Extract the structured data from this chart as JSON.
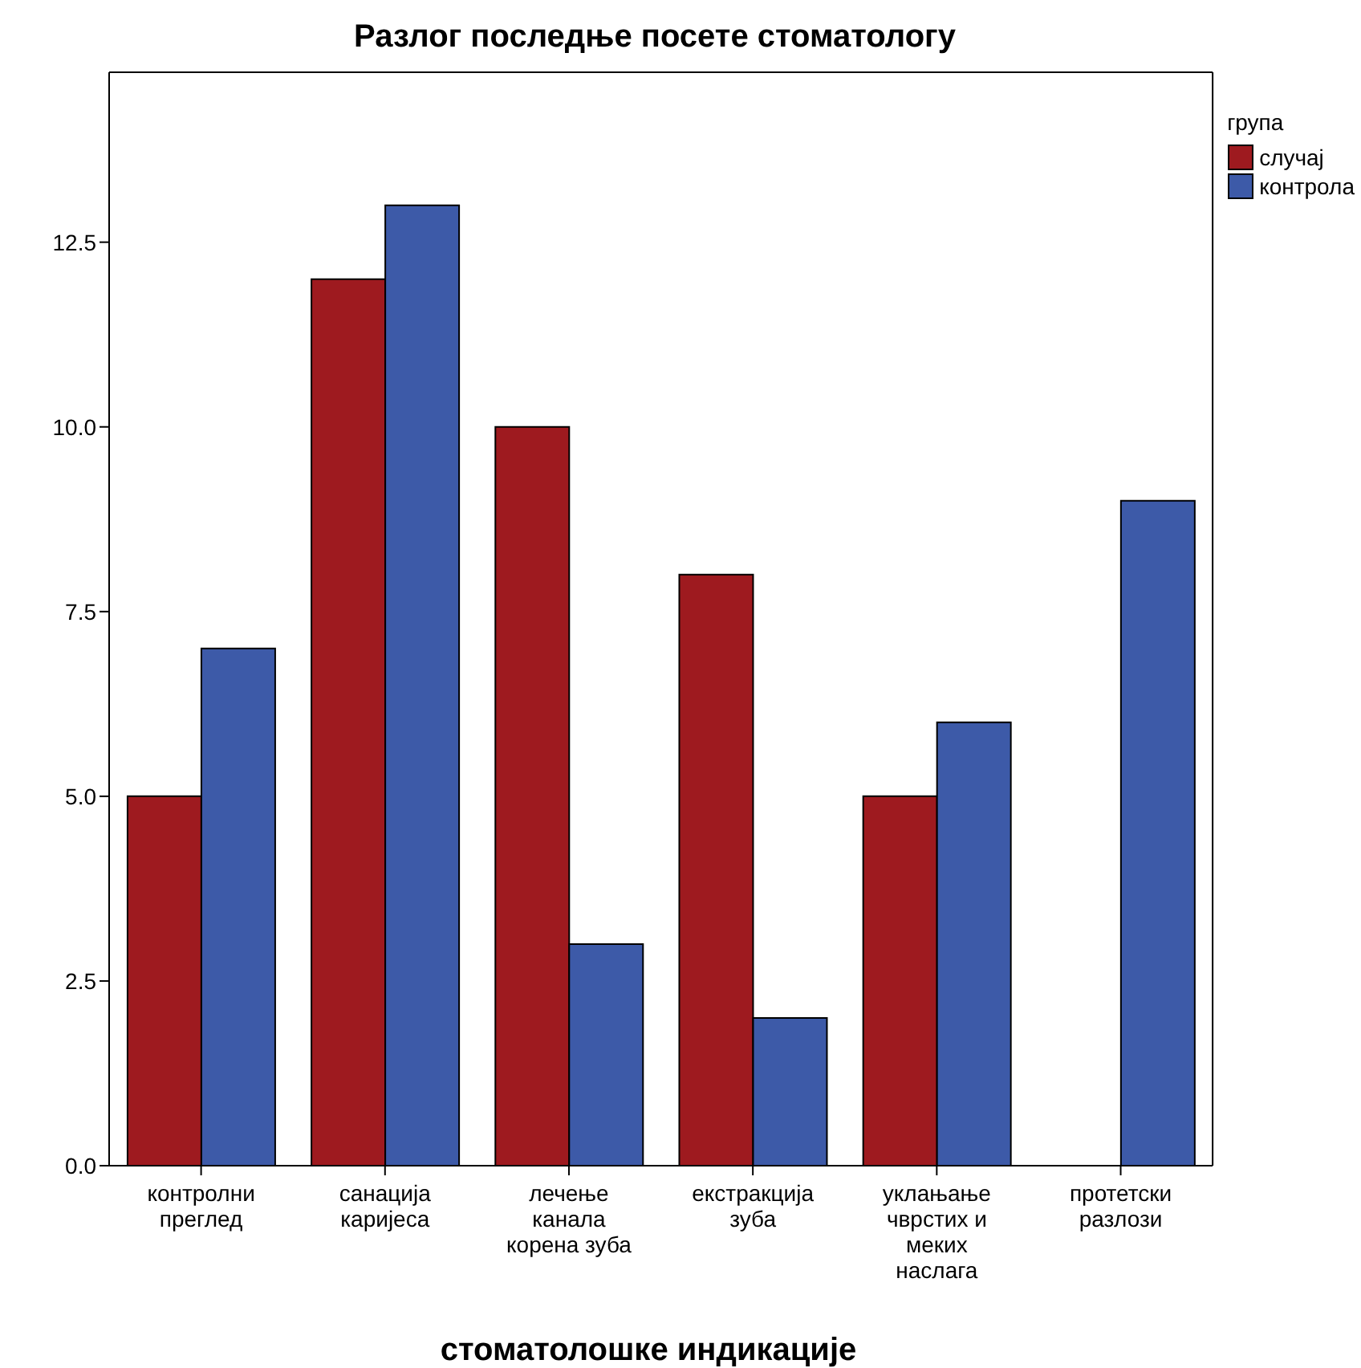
{
  "chart_data": {
    "type": "bar",
    "title": "Разлог последње посете стоматологу",
    "xlabel": "стоматолошке индикације",
    "legend_title": "група",
    "legend": "top right",
    "grid": false,
    "categories": [
      "контролни преглед",
      "санација каријеса",
      "лечење канала корена зуба",
      "екстракција зуба",
      "уклањање чврстих и меких наслага",
      "протетски разлози"
    ],
    "series": [
      {
        "name": "случај",
        "color": "#9e1a1f",
        "values": [
          5,
          12,
          10,
          8,
          5,
          0
        ]
      },
      {
        "name": "контрола",
        "color": "#3d5aa8",
        "values": [
          7,
          13,
          3,
          2,
          6,
          9
        ]
      }
    ],
    "ylim": [
      0,
      14.8
    ],
    "yticks": [
      {
        "value": 0,
        "label": "0.0"
      },
      {
        "value": 2.5,
        "label": "2.5"
      },
      {
        "value": 5,
        "label": "5.0"
      },
      {
        "value": 7.5,
        "label": "7.5"
      },
      {
        "value": 10,
        "label": "10.0"
      },
      {
        "value": 12.5,
        "label": "12.5"
      }
    ]
  }
}
